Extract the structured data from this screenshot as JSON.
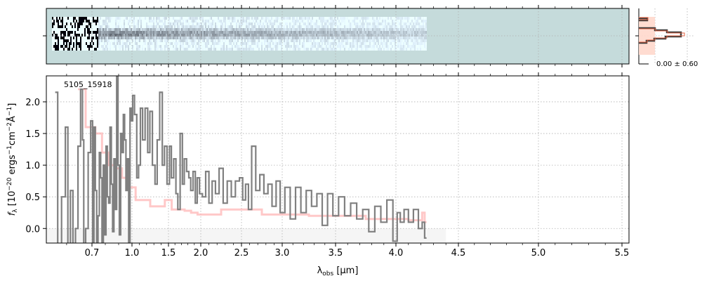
{
  "chart_data": {
    "type": "line",
    "object_label": "5105_15918",
    "xlabel": {
      "main": "λ",
      "sub": "obs",
      "unit": " [μm]"
    },
    "ylabel": {
      "pre": "f",
      "sub": "λ",
      "text1": " [10",
      "sup1": "−20",
      "text2": " ergs",
      "sup2": "−1",
      "text3": "cm",
      "sup3": "−2",
      "text4": "Å",
      "sup4": "−1",
      "text5": "]"
    },
    "xlim": [
      0.52,
      5.52
    ],
    "ylim": [
      -0.23,
      2.41
    ],
    "xticks": [
      "0.7",
      "1.0",
      "1.5",
      "2.0",
      "2.5",
      "3.0",
      "3.5",
      "4.0",
      "4.5",
      "5.0",
      "5.5"
    ],
    "xtick_values": [
      0.7,
      1.0,
      1.5,
      2.0,
      2.5,
      3.0,
      3.5,
      4.0,
      4.5,
      5.0,
      5.5
    ],
    "yticks": [
      "0.0",
      "0.5",
      "1.0",
      "1.5",
      "2.0"
    ],
    "ytick_values": [
      0,
      0.5,
      1.0,
      1.5,
      2.0
    ],
    "grid": true,
    "histogram_label": "0.00 ± 0.60",
    "colors": {
      "data": "#808080",
      "model": "#ffb0b0",
      "panel2d_bg": "#c5dbdb",
      "hist": "#3a3a3a",
      "hist_fill": "#ffd8cc",
      "hist_edge": "#e06040"
    },
    "series": [
      {
        "name": "data",
        "x": [
          0.56,
          0.57,
          0.59,
          0.6,
          0.61,
          0.62,
          0.63,
          0.64,
          0.65,
          0.66,
          0.665,
          0.67,
          0.68,
          0.69,
          0.7,
          0.71,
          0.72,
          0.73,
          0.74,
          0.75,
          0.76,
          0.77,
          0.78,
          0.79,
          0.8,
          0.81,
          0.82,
          0.83,
          0.84,
          0.85,
          0.86,
          0.87,
          0.88,
          0.89,
          0.9,
          0.91,
          0.92,
          0.93,
          0.94,
          0.95,
          0.96,
          0.97,
          0.98,
          0.99,
          1.0,
          1.02,
          1.05,
          1.08,
          1.1,
          1.13,
          1.16,
          1.2,
          1.23,
          1.26,
          1.3,
          1.33,
          1.36,
          1.4,
          1.43,
          1.46,
          1.5,
          1.53,
          1.56,
          1.6,
          1.63,
          1.66,
          1.7,
          1.73,
          1.76,
          1.8,
          1.83,
          1.86,
          1.9,
          1.93,
          1.96,
          2.0,
          2.04,
          2.08,
          2.12,
          2.16,
          2.2,
          2.25,
          2.3,
          2.35,
          2.4,
          2.45,
          2.5,
          2.53,
          2.57,
          2.6,
          2.65,
          2.7,
          2.75,
          2.8,
          2.85,
          2.9,
          2.95,
          3.0,
          3.05,
          3.1,
          3.15,
          3.2,
          3.25,
          3.3,
          3.35,
          3.4,
          3.45,
          3.5,
          3.55,
          3.6,
          3.65,
          3.7,
          3.75,
          3.8,
          3.85,
          3.9,
          3.95,
          4.0,
          4.02,
          4.05,
          4.08,
          4.12,
          4.16,
          4.2,
          4.22,
          4.24
        ],
        "y": [
          2.15,
          -0.3,
          0.5,
          1.6,
          -0.3,
          0.6,
          -0.3,
          0.0,
          1.3,
          2.2,
          1.4,
          -0.3,
          0.0,
          1.2,
          1.7,
          -0.3,
          1.6,
          0.6,
          -0.3,
          0.2,
          1.2,
          0.8,
          -0.3,
          1.0,
          -0.1,
          1.3,
          0.5,
          0.4,
          1.6,
          0.7,
          -0.05,
          1.1,
          0.3,
          2.4,
          1.0,
          -0.1,
          1.5,
          1.2,
          1.8,
          1.4,
          0.6,
          1.1,
          -0.25,
          1.9,
          1.7,
          2.1,
          1.8,
          0.8,
          1.0,
          1.9,
          1.4,
          1.9,
          1.2,
          1.85,
          1.0,
          0.7,
          1.4,
          2.15,
          1.0,
          1.3,
          0.7,
          1.3,
          0.8,
          1.1,
          0.55,
          0.3,
          1.5,
          0.7,
          1.1,
          0.9,
          0.8,
          0.6,
          0.9,
          0.4,
          0.8,
          0.55,
          0.5,
          0.9,
          0.4,
          0.75,
          0.55,
          0.95,
          0.4,
          0.75,
          0.5,
          0.75,
          0.8,
          0.45,
          0.7,
          0.3,
          1.3,
          0.6,
          0.85,
          0.55,
          0.7,
          0.35,
          0.75,
          0.25,
          0.65,
          0.15,
          0.65,
          0.25,
          0.6,
          0.35,
          0.55,
          0.05,
          0.55,
          0.2,
          0.5,
          0.2,
          0.4,
          0.15,
          0.3,
          -0.05,
          0.35,
          0.1,
          0.45,
          -0.2,
          0.25,
          0.1,
          0.3,
          0.1,
          0.3,
          0.0,
          0.1,
          -0.15
        ]
      },
      {
        "name": "model",
        "x": [
          0.65,
          0.7,
          0.75,
          0.8,
          0.85,
          0.9,
          0.95,
          1.0,
          1.1,
          1.2,
          1.3,
          1.4,
          1.5,
          1.6,
          1.7,
          1.8,
          1.9,
          2.0,
          2.5,
          3.0,
          3.5,
          4.0,
          4.2,
          4.22,
          4.24
        ],
        "y": [
          2.2,
          1.6,
          1.5,
          1.2,
          1.0,
          0.95,
          0.8,
          0.65,
          0.45,
          0.45,
          0.35,
          0.35,
          0.45,
          0.3,
          0.3,
          0.28,
          0.25,
          0.22,
          0.3,
          0.22,
          0.2,
          0.15,
          0.13,
          0.25,
          0.1
        ]
      }
    ]
  }
}
